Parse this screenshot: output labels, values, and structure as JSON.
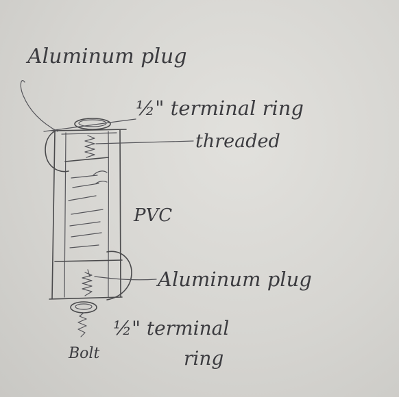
{
  "labels": {
    "top_plug": "Aluminum plug",
    "top_ring": "½\" terminal ring",
    "threaded": "threaded",
    "pvc": "PVC",
    "bottom_plug": "Aluminum plug",
    "bottom_ring_line1": "½\" terminal",
    "bottom_ring_line2": "ring",
    "bolt": "Bolt"
  },
  "colors": {
    "paper": "#d6d5d1",
    "ink": "#4a4a4c"
  }
}
